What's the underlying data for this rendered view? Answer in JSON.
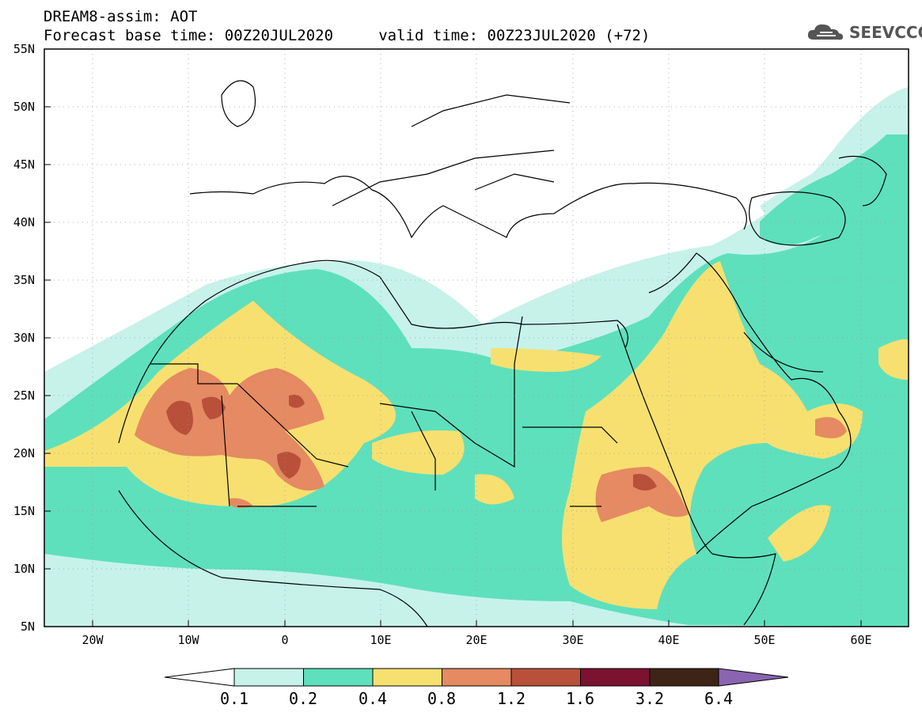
{
  "header": {
    "title_line1": "DREAM8-assim: AOT",
    "title_line2": "Forecast base time: 00Z20JUL2020     valid time: 00Z23JUL2020 (+72)",
    "logo_text": "SEEVCCC"
  },
  "map": {
    "lat_labels": [
      "55N",
      "50N",
      "45N",
      "40N",
      "35N",
      "30N",
      "25N",
      "20N",
      "15N",
      "10N",
      "5N"
    ],
    "lon_labels": [
      "20W",
      "10W",
      "0",
      "10E",
      "20E",
      "30E",
      "40E",
      "50E",
      "60E"
    ],
    "extent": {
      "lon": [
        -25,
        65
      ],
      "lat": [
        5,
        55
      ]
    }
  },
  "colorbar": {
    "thresholds": [
      "0.1",
      "0.2",
      "0.4",
      "0.8",
      "1.2",
      "1.6",
      "3.2",
      "6.4"
    ],
    "colors": [
      "#c6f2ea",
      "#5ee0bc",
      "#f7e070",
      "#e58a62",
      "#b8503a",
      "#7a1230",
      "#3e2416",
      "#8a64b0"
    ],
    "below_color": "#ffffff"
  },
  "colors": {
    "aot_01_02": "#c6f2ea",
    "aot_02_04": "#5ee0bc",
    "aot_04_08": "#f7e070",
    "aot_08_12": "#e58a62",
    "aot_12_16": "#b8503a"
  }
}
